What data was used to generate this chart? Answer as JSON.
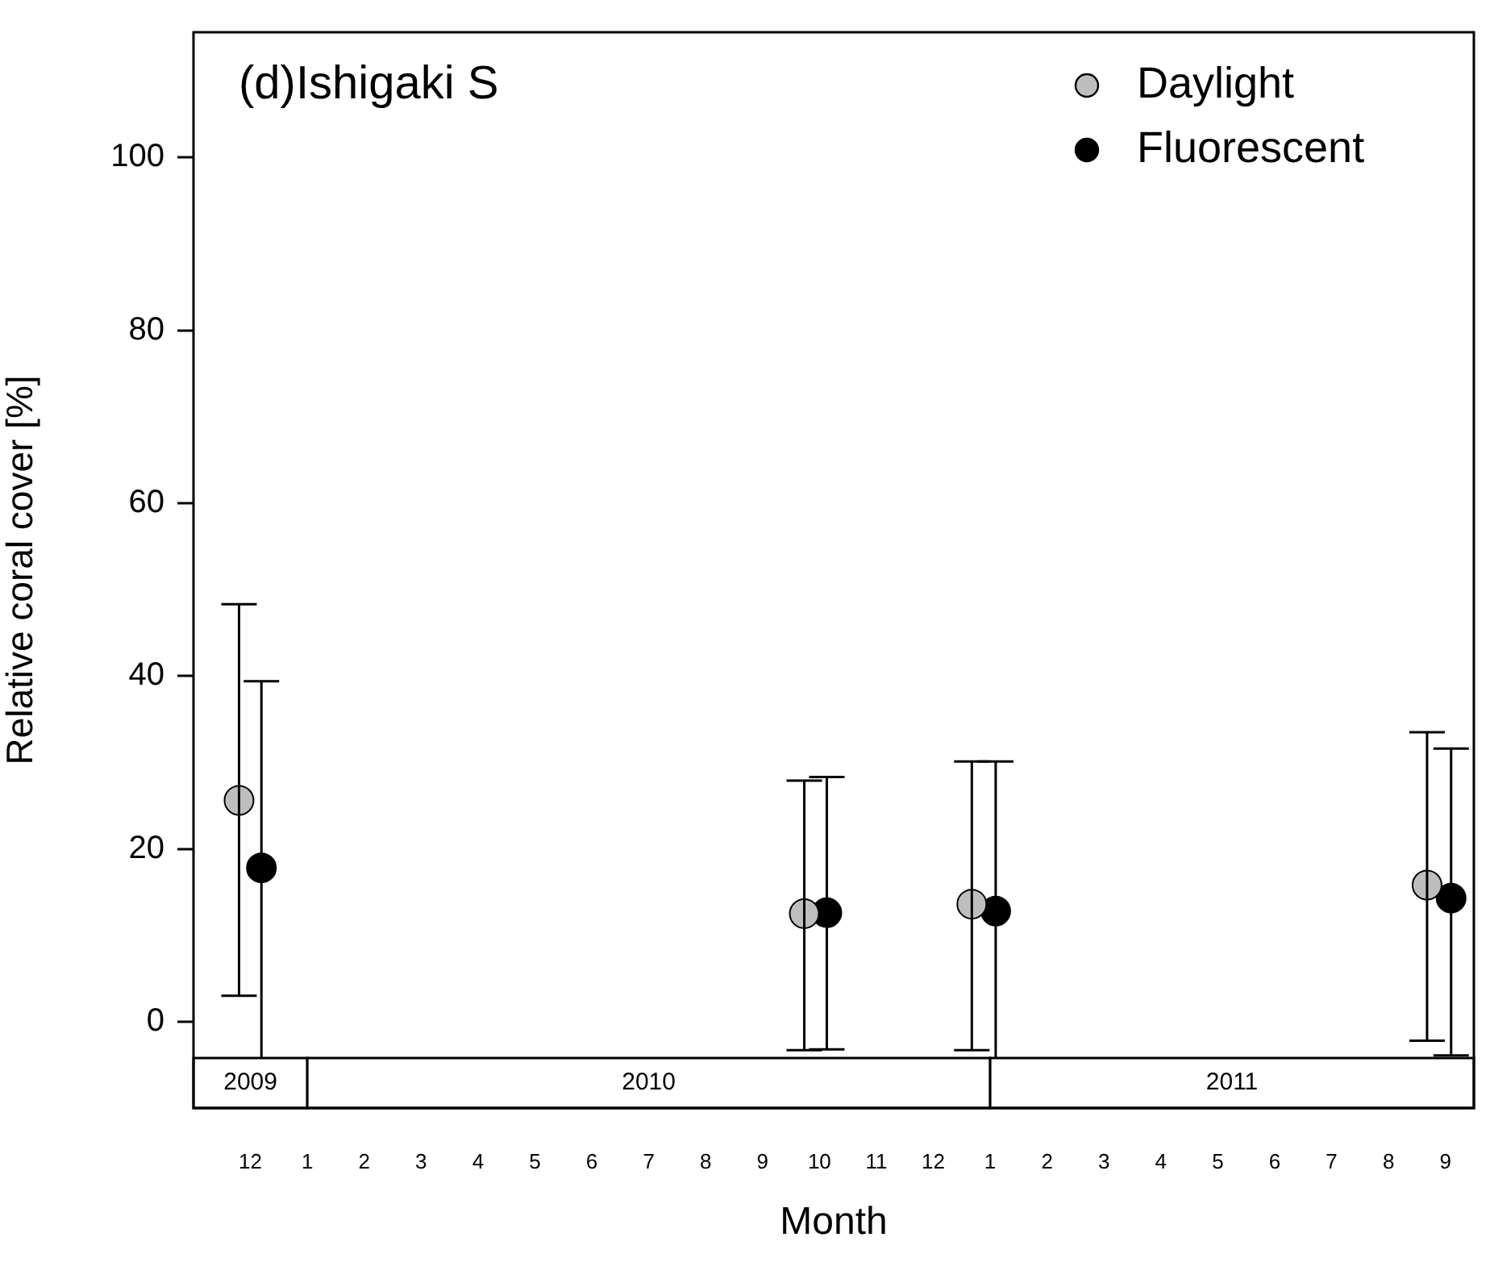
{
  "chart_data": {
    "type": "scatter",
    "title": "(d)Ishigaki S",
    "xlabel": "Month",
    "ylabel": "Relative coral cover [%]",
    "series": [
      {
        "name": "Daylight",
        "color": "#bebebe",
        "x": [
          "2009-11-25",
          "2010-09-23",
          "2010-12-22",
          "2011-08-22"
        ],
        "values": [
          25.6,
          12.5,
          13.6,
          15.8
        ],
        "errors": [
          [
            3.0,
            48.3
          ],
          [
            -3.3,
            27.9
          ],
          [
            -3.3,
            30.1
          ],
          [
            -2.2,
            33.5
          ]
        ]
      },
      {
        "name": "Fluorescent",
        "color": "#000000",
        "x": [
          "2009-12-07",
          "2010-10-05",
          "2011-01-04",
          "2011-09-04"
        ],
        "values": [
          17.8,
          12.6,
          12.8,
          14.3
        ],
        "errors": [
          [
            -4.3,
            39.4
          ],
          [
            -3.2,
            28.3
          ],
          [
            -4.3,
            30.1
          ],
          [
            -3.9,
            31.6
          ]
        ]
      }
    ],
    "xlim": [
      "2009-11",
      "2011-09-16"
    ],
    "xticks": [
      {
        "value": "2009-12",
        "label": "12"
      },
      {
        "value": "2010-01",
        "label": "1"
      },
      {
        "value": "2010-02",
        "label": "2"
      },
      {
        "value": "2010-03",
        "label": "3"
      },
      {
        "value": "2010-04",
        "label": "4"
      },
      {
        "value": "2010-05",
        "label": "5"
      },
      {
        "value": "2010-06",
        "label": "6"
      },
      {
        "value": "2010-07",
        "label": "7"
      },
      {
        "value": "2010-08",
        "label": "8"
      },
      {
        "value": "2010-09",
        "label": "9"
      },
      {
        "value": "2010-10",
        "label": "10"
      },
      {
        "value": "2010-11",
        "label": "11"
      },
      {
        "value": "2010-12",
        "label": "12"
      },
      {
        "value": "2011-01",
        "label": "1"
      },
      {
        "value": "2011-02",
        "label": "2"
      },
      {
        "value": "2011-03",
        "label": "3"
      },
      {
        "value": "2011-04",
        "label": "4"
      },
      {
        "value": "2011-05",
        "label": "5"
      },
      {
        "value": "2011-06",
        "label": "6"
      },
      {
        "value": "2011-07",
        "label": "7"
      },
      {
        "value": "2011-08",
        "label": "8"
      },
      {
        "value": "2011-09",
        "label": "9"
      }
    ],
    "ylim": [
      -10,
      114.5
    ],
    "yticks": [
      0,
      20,
      40,
      60,
      80,
      100
    ],
    "bands": [
      {
        "axis": "x",
        "from": "2009-11",
        "to": "2010-01",
        "label": "2009",
        "color": "#ffffff"
      },
      {
        "axis": "x",
        "from": "2010-01",
        "to": "2011-01",
        "label": "2010",
        "color": "#ffffff"
      },
      {
        "axis": "x",
        "from": "2011-01",
        "to": "2011-09-16",
        "label": "2011",
        "color": "#ffffff"
      }
    ],
    "grid": false,
    "legend": "top right",
    "marker": "circle"
  }
}
